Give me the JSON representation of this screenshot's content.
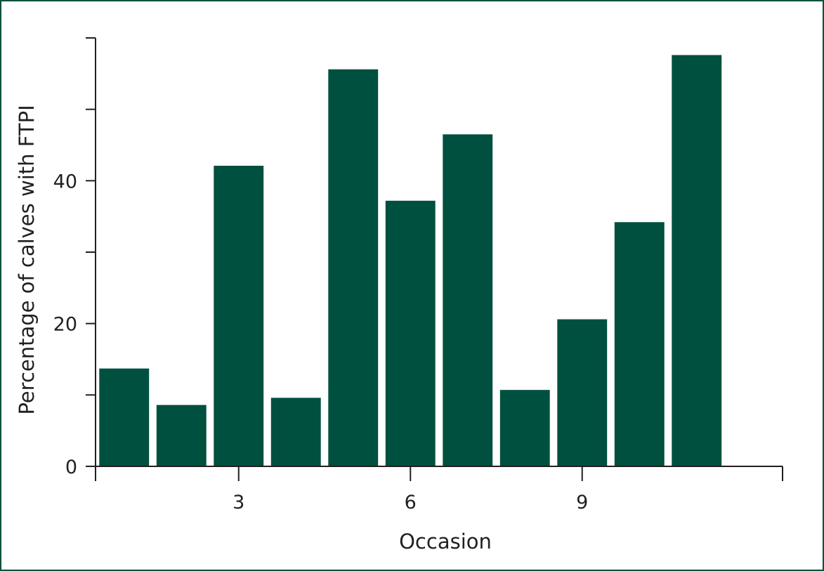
{
  "chart_data": {
    "type": "bar",
    "title": "",
    "xlabel": "Occasion",
    "ylabel": "Percentage of calves with FTPI",
    "x": [
      1,
      2,
      3,
      4,
      5,
      6,
      7,
      8,
      9,
      10,
      11
    ],
    "values": [
      13.7,
      8.6,
      42.1,
      9.6,
      55.6,
      37.2,
      46.5,
      10.7,
      20.6,
      34.2,
      57.6
    ],
    "xlim": [
      0.5,
      12.5
    ],
    "ylim": [
      0,
      60
    ],
    "xticks": [
      3,
      6,
      9
    ],
    "xtick_labels": [
      "3",
      "6",
      "9"
    ],
    "yticks": [
      0,
      10,
      20,
      30,
      40,
      50,
      60
    ],
    "ytick_labels": [
      "0",
      "",
      "20",
      "",
      "40",
      "",
      ""
    ],
    "grid": false,
    "legend": "none",
    "bar_color": "#00503f",
    "frame_color": "#00503f"
  }
}
